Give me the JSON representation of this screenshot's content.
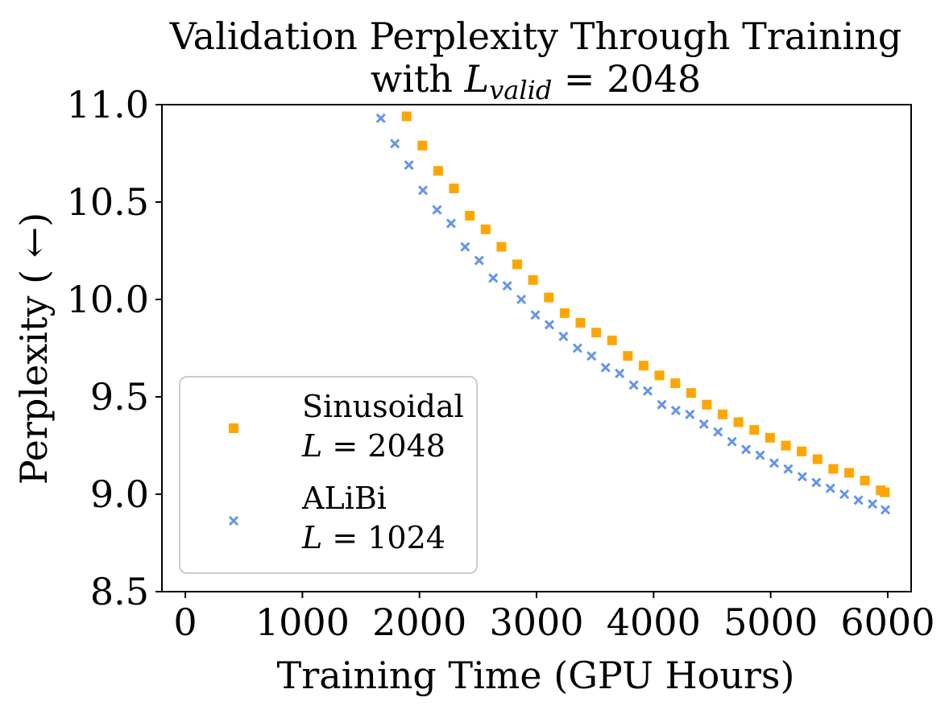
{
  "chart_data": {
    "type": "scatter",
    "title": "Validation Perplexity Through Training",
    "subtitle_prefix": "with ",
    "subtitle_var": "L",
    "subtitle_sub": "valid",
    "subtitle_suffix": " = 2048",
    "xlabel": "Training Time (GPU Hours)",
    "ylabel": "Perplexity ( ←)",
    "xlim": [
      -200,
      6200
    ],
    "ylim": [
      8.5,
      11.0
    ],
    "xticks": [
      0,
      1000,
      2000,
      3000,
      4000,
      5000,
      6000
    ],
    "xtick_labels": [
      "0",
      "1000",
      "2000",
      "3000",
      "4000",
      "5000",
      "6000"
    ],
    "yticks": [
      8.5,
      9.0,
      9.5,
      10.0,
      10.5,
      11.0
    ],
    "ytick_labels": [
      "8.5",
      "9.0",
      "9.5",
      "10.0",
      "10.5",
      "11.0"
    ],
    "grid": false,
    "legend_position": "lower-left",
    "series": [
      {
        "name_line1": "Sinusoidal",
        "name_line2_var": "L",
        "name_line2_rest": " = 2048",
        "marker": "square",
        "color": "#FFA500",
        "x": [
          1890,
          2025,
          2160,
          2295,
          2430,
          2565,
          2700,
          2835,
          2970,
          3105,
          3240,
          3375,
          3510,
          3645,
          3780,
          3915,
          4050,
          4185,
          4320,
          4455,
          4590,
          4725,
          4860,
          4995,
          5130,
          5265,
          5400,
          5535,
          5670,
          5805,
          5940,
          5975
        ],
        "y": [
          10.94,
          10.79,
          10.66,
          10.57,
          10.43,
          10.36,
          10.27,
          10.18,
          10.1,
          10.01,
          9.93,
          9.88,
          9.83,
          9.79,
          9.71,
          9.66,
          9.61,
          9.57,
          9.52,
          9.46,
          9.41,
          9.37,
          9.33,
          9.29,
          9.25,
          9.22,
          9.18,
          9.13,
          9.11,
          9.07,
          9.02,
          9.01
        ]
      },
      {
        "name_line1": "ALiBi",
        "name_line2_var": "L",
        "name_line2_rest": " = 1024",
        "marker": "x",
        "color": "#6495ED",
        "x": [
          1670,
          1790,
          1910,
          2030,
          2150,
          2270,
          2390,
          2510,
          2630,
          2750,
          2870,
          2990,
          3110,
          3230,
          3350,
          3470,
          3590,
          3710,
          3830,
          3950,
          4070,
          4190,
          4310,
          4430,
          4550,
          4670,
          4790,
          4910,
          5030,
          5150,
          5270,
          5390,
          5510,
          5630,
          5750,
          5870,
          5980
        ],
        "y": [
          10.93,
          10.8,
          10.69,
          10.56,
          10.46,
          10.39,
          10.27,
          10.2,
          10.11,
          10.07,
          10.0,
          9.92,
          9.87,
          9.81,
          9.75,
          9.71,
          9.65,
          9.62,
          9.56,
          9.53,
          9.46,
          9.43,
          9.41,
          9.36,
          9.32,
          9.27,
          9.23,
          9.2,
          9.16,
          9.13,
          9.09,
          9.06,
          9.03,
          9.0,
          8.97,
          8.95,
          8.92
        ]
      }
    ]
  }
}
